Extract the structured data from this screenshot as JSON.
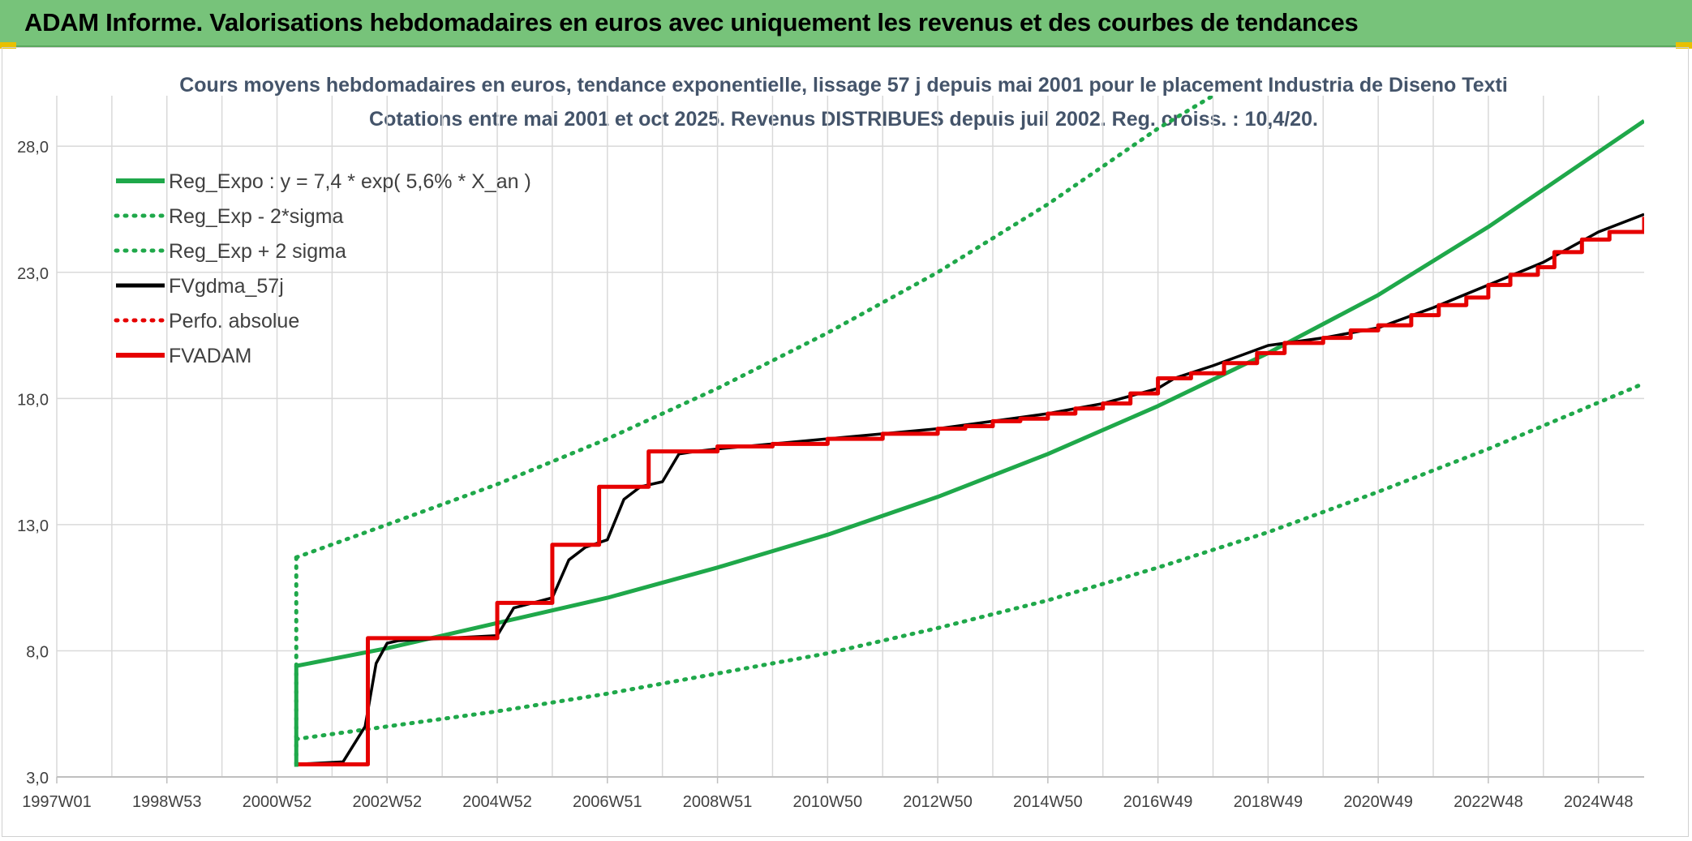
{
  "banner": {
    "title": "ADAM Informe. Valorisations hebdomadaires en euros avec uniquement les revenus et des courbes de tendances"
  },
  "colors": {
    "banner": "#77c37a",
    "trend": "#1fa84a",
    "black_series": "#000000",
    "red_series": "#e60000",
    "grid": "#d9d9d9"
  },
  "chart_data": {
    "type": "line",
    "title": "Cours moyens hebdomadaires en euros, tendance exponentielle, lissage 57 j depuis mai 2001 pour le placement Industria de Diseno Texti",
    "subtitle": "Cotations entre mai 2001 et oct 2025. Revenus DISTRIBUES depuis juil 2002. Reg. croiss. : 10,4/20.",
    "xlabel": "",
    "ylabel": "",
    "ylim": [
      3.0,
      30.0
    ],
    "yticks": [
      "3,0",
      "8,0",
      "13,0",
      "18,0",
      "23,0",
      "28,0"
    ],
    "ytick_values": [
      3,
      8,
      13,
      18,
      23,
      28
    ],
    "xlim": [
      1997.0,
      2025.83
    ],
    "xticks": [
      "1997W01",
      "1998W53",
      "2000W52",
      "2002W52",
      "2004W52",
      "2006W51",
      "2008W51",
      "2010W50",
      "2012W50",
      "2014W50",
      "2016W49",
      "2018W49",
      "2020W49",
      "2022W48",
      "2024W48"
    ],
    "xtick_values": [
      1997.0,
      1999.0,
      2001.0,
      2003.0,
      2005.0,
      2007.0,
      2009.0,
      2011.0,
      2013.0,
      2015.0,
      2017.0,
      2019.0,
      2021.0,
      2023.0,
      2025.0
    ],
    "grid": true,
    "legend_position": "top-left",
    "series": [
      {
        "name": "Reg_Expo : y = 7,4 * exp( 5,6% *  X_an )",
        "style": "solid",
        "color": "#1fa84a",
        "x": [
          2001.35,
          2003,
          2005,
          2007,
          2009,
          2011,
          2013,
          2015,
          2017,
          2019,
          2021,
          2023,
          2025.83
        ],
        "y": [
          7.4,
          8.1,
          9.1,
          10.1,
          11.3,
          12.6,
          14.1,
          15.8,
          17.7,
          19.8,
          22.1,
          24.8,
          29.0
        ]
      },
      {
        "name": "Reg_Exp - 2*sigma",
        "style": "dotted",
        "color": "#1fa84a",
        "x": [
          2001.35,
          2003,
          2005,
          2007,
          2009,
          2011,
          2013,
          2015,
          2017,
          2019,
          2021,
          2023,
          2025.83
        ],
        "y": [
          4.5,
          5.0,
          5.6,
          6.3,
          7.1,
          7.9,
          8.9,
          10.0,
          11.3,
          12.7,
          14.3,
          16.0,
          18.6
        ]
      },
      {
        "name": "Reg_Exp + 2 sigma",
        "style": "dotted",
        "color": "#1fa84a",
        "x": [
          2001.35,
          2003,
          2005,
          2007,
          2009,
          2011,
          2013,
          2015,
          2017,
          2018
        ],
        "y": [
          11.7,
          13.0,
          14.6,
          16.4,
          18.4,
          20.6,
          23.0,
          25.7,
          28.7,
          30.0
        ]
      },
      {
        "name": "FVgdma_57j",
        "style": "solid",
        "color": "#000000",
        "x": [
          2001.35,
          2002.2,
          2002.6,
          2002.8,
          2003.0,
          2003.2,
          2005.0,
          2005.3,
          2006.0,
          2006.3,
          2006.6,
          2007.0,
          2007.3,
          2007.6,
          2008.0,
          2008.3,
          2008.6,
          2009.0,
          2010.0,
          2011.0,
          2012.0,
          2013.0,
          2014.0,
          2015.0,
          2016.0,
          2017.0,
          2017.3,
          2018.0,
          2019.0,
          2020.0,
          2021.0,
          2022.0,
          2023.0,
          2024.0,
          2025.0,
          2025.83
        ],
        "y": [
          3.5,
          3.6,
          5.0,
          7.5,
          8.3,
          8.4,
          8.6,
          9.7,
          10.1,
          11.6,
          12.1,
          12.4,
          14.0,
          14.5,
          14.7,
          15.8,
          15.9,
          16.0,
          16.2,
          16.4,
          16.6,
          16.8,
          17.1,
          17.4,
          17.8,
          18.4,
          18.8,
          19.3,
          20.1,
          20.4,
          20.8,
          21.6,
          22.5,
          23.4,
          24.6,
          25.3
        ]
      },
      {
        "name": "Perfo. absolue",
        "style": "dotted",
        "color": "#e60000",
        "x": [],
        "y": []
      },
      {
        "name": "FVADAM",
        "style": "step",
        "color": "#e60000",
        "x": [
          2001.35,
          2002.65,
          2005.0,
          2006.0,
          2006.85,
          2007.75,
          2009.0,
          2010.0,
          2011.0,
          2012.0,
          2013.0,
          2013.5,
          2014.0,
          2014.5,
          2015.0,
          2015.5,
          2016.0,
          2016.5,
          2017.0,
          2017.6,
          2018.2,
          2018.8,
          2019.3,
          2020.0,
          2020.5,
          2021.0,
          2021.6,
          2022.1,
          2022.6,
          2023.0,
          2023.4,
          2023.9,
          2024.2,
          2024.7,
          2025.2,
          2025.83
        ],
        "y": [
          3.5,
          8.5,
          9.9,
          12.2,
          14.5,
          15.9,
          16.1,
          16.2,
          16.4,
          16.6,
          16.8,
          16.9,
          17.1,
          17.2,
          17.4,
          17.6,
          17.8,
          18.2,
          18.8,
          19.0,
          19.4,
          19.8,
          20.2,
          20.4,
          20.7,
          20.9,
          21.3,
          21.7,
          22.0,
          22.5,
          22.9,
          23.2,
          23.8,
          24.3,
          24.6,
          25.2
        ]
      }
    ]
  }
}
